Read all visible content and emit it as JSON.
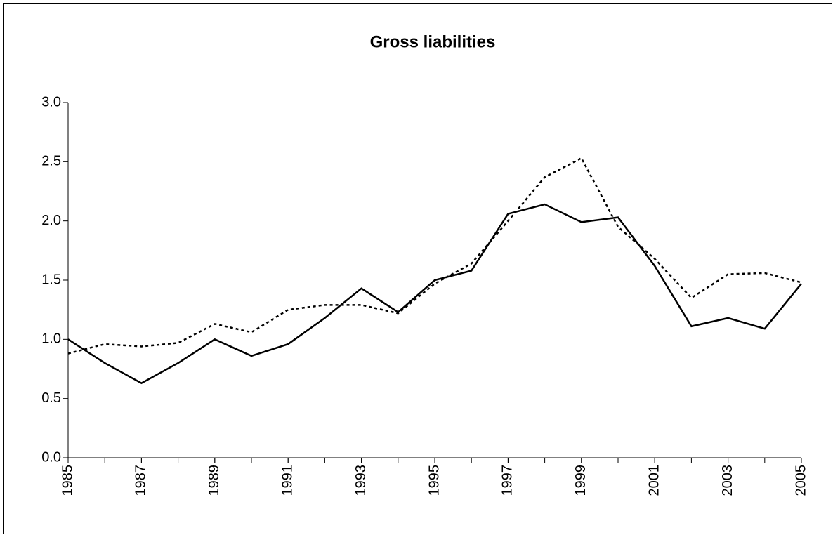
{
  "chart_data": {
    "type": "line",
    "title": "Gross liabilities",
    "x": [
      1985,
      1986,
      1987,
      1988,
      1989,
      1990,
      1991,
      1992,
      1993,
      1994,
      1995,
      1996,
      1997,
      1998,
      1999,
      2000,
      2001,
      2002,
      2003,
      2004,
      2005
    ],
    "xlim": [
      1985,
      2005
    ],
    "xticks": [
      1985,
      1987,
      1989,
      1991,
      1993,
      1995,
      1997,
      1999,
      2001,
      2003,
      2005
    ],
    "ylim": [
      0,
      3
    ],
    "yticks": [
      {
        "value": 0,
        "label": "0.0"
      },
      0.5,
      {
        "value": 1,
        "label": "1.0"
      },
      1.5,
      {
        "value": 2,
        "label": "2.0"
      },
      2.5,
      {
        "value": 3,
        "label": "3.0"
      }
    ],
    "grid": false,
    "series": [
      {
        "color": "#000000",
        "dash": "solid",
        "values": [
          1.0,
          0.8,
          0.63,
          0.8,
          1.0,
          0.86,
          0.96,
          1.18,
          1.43,
          1.23,
          1.5,
          1.58,
          2.06,
          2.14,
          1.99,
          2.03,
          1.62,
          1.11,
          1.18,
          1.09,
          1.47
        ]
      },
      {
        "color": "#000000",
        "dash": "dotted",
        "values": [
          0.88,
          0.96,
          0.94,
          0.97,
          1.13,
          1.06,
          1.25,
          1.29,
          1.29,
          1.22,
          1.47,
          1.64,
          2.0,
          2.37,
          2.53,
          1.95,
          1.68,
          1.35,
          1.55,
          1.56,
          1.48
        ]
      }
    ]
  }
}
